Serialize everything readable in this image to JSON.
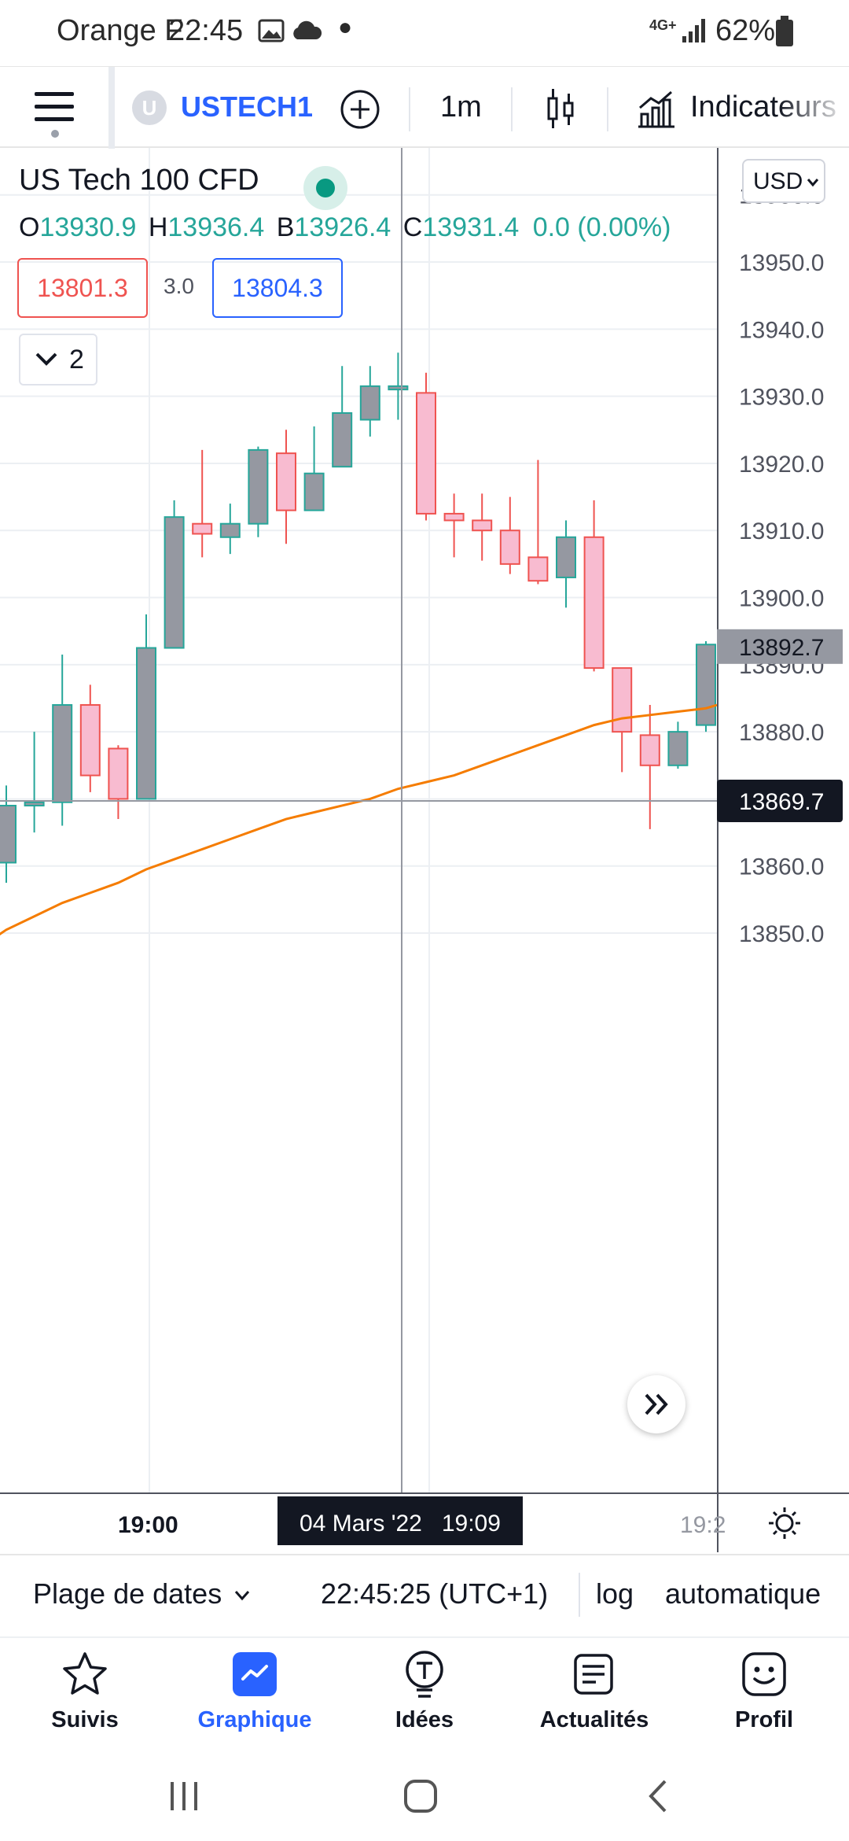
{
  "status_bar": {
    "carrier": "Orange F",
    "time": "22:45",
    "network": "4G+",
    "battery": "62%"
  },
  "toolbar": {
    "symbol_initial": "U",
    "symbol": "USTECH1",
    "interval": "1m",
    "indicators_label": "Indicateurs"
  },
  "legend": {
    "title": "US Tech 100 CFD",
    "open_label": "O",
    "open": "13930.9",
    "high_label": "H",
    "high": "13936.4",
    "low_label": "B",
    "low": "13926.4",
    "close_label": "C",
    "close": "13931.4",
    "change": "0.0 (0.00%)",
    "sell_price": "13801.3",
    "spread": "3.0",
    "buy_price": "13804.3",
    "collapse_count": "2"
  },
  "currency": "USD",
  "chart_data": {
    "type": "candlestick",
    "title": "US Tech 100 CFD",
    "xlabel": "",
    "ylabel": "",
    "ylim": [
      13840.0,
      13970.0
    ],
    "y_ticks": [
      "13960.0",
      "13950.0",
      "13940.0",
      "13930.0",
      "13920.0",
      "13910.0",
      "13900.0",
      "13890.0",
      "13880.0",
      "13870.0",
      "13860.0",
      "13850.0"
    ],
    "x_ticks": [
      "19:00",
      "04 Mars '22   19:09",
      "19:2"
    ],
    "crosshair": {
      "time": "04 Mars '22   19:09",
      "price": "13869.7"
    },
    "last_price": "13892.7",
    "colors": {
      "up": "#9598a1",
      "up_border": "#26a69a",
      "down": "#f8bbd0",
      "down_border": "#ef5350",
      "ma": "#f57c00"
    },
    "candles": [
      {
        "o": 13860.5,
        "h": 13872.0,
        "l": 13857.5,
        "c": 13869.0
      },
      {
        "o": 13869.0,
        "h": 13880.0,
        "l": 13865.0,
        "c": 13869.5
      },
      {
        "o": 13869.5,
        "h": 13891.5,
        "l": 13866.0,
        "c": 13884.0
      },
      {
        "o": 13884.0,
        "h": 13887.0,
        "l": 13871.0,
        "c": 13873.5
      },
      {
        "o": 13877.5,
        "h": 13878.0,
        "l": 13867.0,
        "c": 13870.0
      },
      {
        "o": 13870.0,
        "h": 13897.5,
        "l": 13870.0,
        "c": 13892.5
      },
      {
        "o": 13892.5,
        "h": 13914.5,
        "l": 13892.5,
        "c": 13912.0
      },
      {
        "o": 13911.0,
        "h": 13922.0,
        "l": 13906.0,
        "c": 13909.5
      },
      {
        "o": 13909.0,
        "h": 13914.0,
        "l": 13906.5,
        "c": 13911.0
      },
      {
        "o": 13911.0,
        "h": 13922.5,
        "l": 13909.0,
        "c": 13922.0
      },
      {
        "o": 13921.5,
        "h": 13925.0,
        "l": 13908.0,
        "c": 13913.0
      },
      {
        "o": 13913.0,
        "h": 13925.5,
        "l": 13913.0,
        "c": 13918.5
      },
      {
        "o": 13919.5,
        "h": 13934.5,
        "l": 13919.5,
        "c": 13927.5
      },
      {
        "o": 13926.5,
        "h": 13934.5,
        "l": 13924.0,
        "c": 13931.5
      },
      {
        "o": 13931.0,
        "h": 13936.5,
        "l": 13926.5,
        "c": 13931.5
      },
      {
        "o": 13930.5,
        "h": 13933.5,
        "l": 13911.5,
        "c": 13912.5
      },
      {
        "o": 13912.5,
        "h": 13915.5,
        "l": 13906.0,
        "c": 13911.5
      },
      {
        "o": 13911.5,
        "h": 13915.5,
        "l": 13905.5,
        "c": 13910.0
      },
      {
        "o": 13910.0,
        "h": 13915.0,
        "l": 13903.5,
        "c": 13905.0
      },
      {
        "o": 13906.0,
        "h": 13920.5,
        "l": 13902.0,
        "c": 13902.5
      },
      {
        "o": 13903.0,
        "h": 13911.5,
        "l": 13898.5,
        "c": 13909.0
      },
      {
        "o": 13909.0,
        "h": 13914.5,
        "l": 13889.0,
        "c": 13889.5
      },
      {
        "o": 13889.5,
        "h": 13889.5,
        "l": 13874.0,
        "c": 13880.0
      },
      {
        "o": 13879.5,
        "h": 13884.0,
        "l": 13865.5,
        "c": 13875.0
      },
      {
        "o": 13875.0,
        "h": 13881.5,
        "l": 13874.5,
        "c": 13880.0
      },
      {
        "o": 13881.0,
        "h": 13893.5,
        "l": 13880.0,
        "c": 13893.0
      }
    ],
    "ma": [
      13850.5,
      13852.5,
      13854.5,
      13856.0,
      13857.5,
      13859.5,
      13861.0,
      13862.5,
      13864.0,
      13865.5,
      13867.0,
      13868.0,
      13869.0,
      13870.0,
      13871.5,
      13872.5,
      13873.5,
      13875.0,
      13876.5,
      13878.0,
      13879.5,
      13881.0,
      13882.0,
      13882.5,
      13883.0,
      13883.5
    ]
  },
  "range_bar": {
    "date_range": "Plage de dates",
    "clock": "22:45:25 (UTC+1)",
    "log": "log",
    "auto": "automatique"
  },
  "bottom_nav": [
    {
      "label": "Suivis",
      "icon": "star-icon"
    },
    {
      "label": "Graphique",
      "icon": "chart-icon"
    },
    {
      "label": "Idées",
      "icon": "ideas-icon"
    },
    {
      "label": "Actualités",
      "icon": "news-icon"
    },
    {
      "label": "Profil",
      "icon": "profile-icon"
    }
  ]
}
